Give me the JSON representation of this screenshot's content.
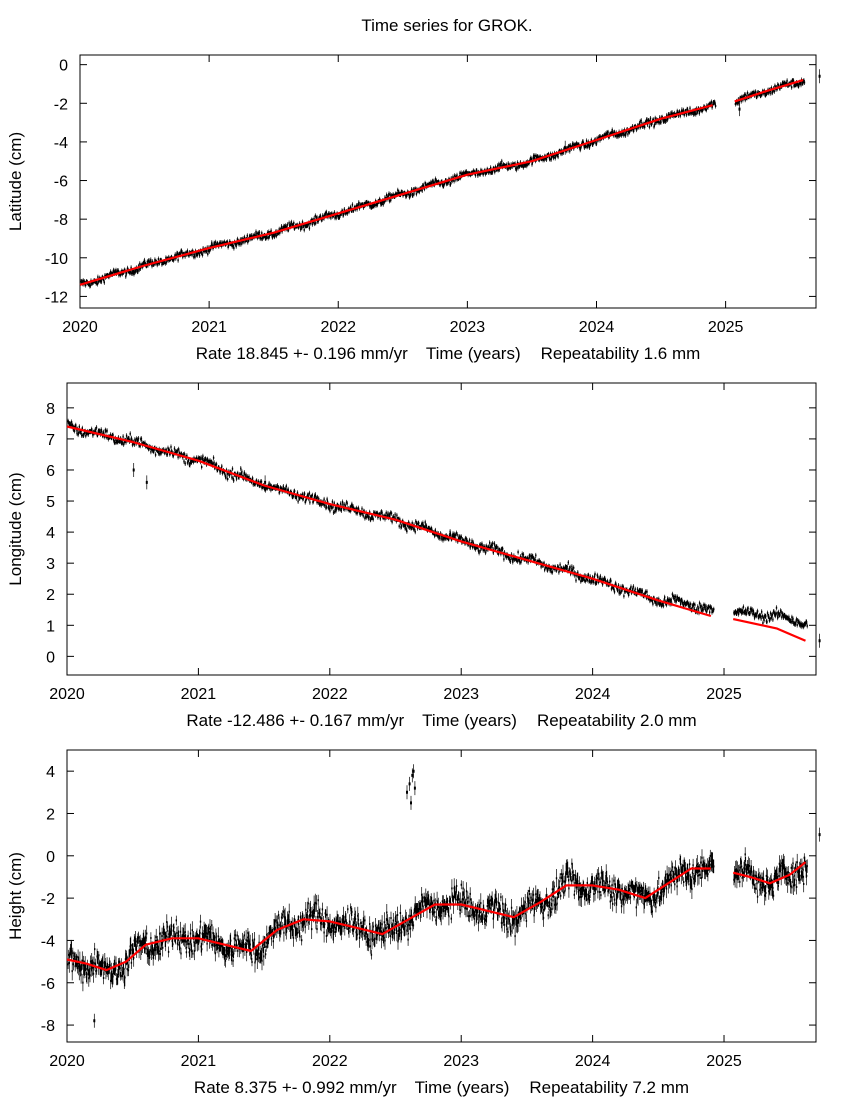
{
  "figure": {
    "title": "Time series for GROK."
  },
  "chart_data": [
    {
      "type": "scatter",
      "name": "latitude",
      "ylabel": "Latitude (cm)",
      "xlabel_rate": "Rate 18.845 +- 0.196 mm/yr",
      "xlabel_axis": "Time (years)",
      "xlabel_repeat": "Repeatability 1.6 mm",
      "xlim": [
        2020,
        2025.7
      ],
      "ylim": [
        -12.6,
        0.5
      ],
      "xticks": [
        2020,
        2021,
        2022,
        2023,
        2024,
        2025
      ],
      "xtick_labels": [
        "2020",
        "2021",
        "2022",
        "2023",
        "2024",
        "2025"
      ],
      "yticks": [
        0,
        -2,
        -4,
        -6,
        -8,
        -10,
        -12
      ],
      "ytick_labels": [
        "0",
        "-2",
        "-4",
        "-6",
        "-8",
        "-10",
        "-12"
      ],
      "fit_color": "#ff0000",
      "data_color": "#000000",
      "fit": [
        [
          2020.0,
          -11.4
        ],
        [
          2020.5,
          -10.4
        ],
        [
          2021.0,
          -9.5
        ],
        [
          2021.5,
          -8.7
        ],
        [
          2022.0,
          -7.7
        ],
        [
          2022.5,
          -6.7
        ],
        [
          2023.0,
          -5.7
        ],
        [
          2023.5,
          -5.0
        ],
        [
          2024.0,
          -3.9
        ],
        [
          2024.5,
          -2.8
        ],
        [
          2024.9,
          -2.1
        ]
      ],
      "fit2": [
        [
          2025.07,
          -1.9
        ],
        [
          2025.3,
          -1.4
        ],
        [
          2025.6,
          -0.8
        ]
      ],
      "noise": 0.18,
      "gap": [
        2024.92,
        2025.07
      ],
      "outliers": [
        [
          2025.1,
          -2.3
        ],
        [
          2025.72,
          -0.6
        ],
        [
          2023.75,
          -4.3
        ]
      ]
    },
    {
      "type": "scatter",
      "name": "longitude",
      "ylabel": "Longitude (cm)",
      "xlabel_rate": "Rate -12.486 +- 0.167 mm/yr",
      "xlabel_axis": "Time (years)",
      "xlabel_repeat": "Repeatability 2.0 mm",
      "xlim": [
        2020,
        2025.7
      ],
      "ylim": [
        -0.6,
        8.8
      ],
      "xticks": [
        2020,
        2021,
        2022,
        2023,
        2024,
        2025
      ],
      "xtick_labels": [
        "2020",
        "2021",
        "2022",
        "2023",
        "2024",
        "2025"
      ],
      "yticks": [
        0,
        1,
        2,
        3,
        4,
        5,
        6,
        7,
        8
      ],
      "ytick_labels": [
        "0",
        "1",
        "2",
        "3",
        "4",
        "5",
        "6",
        "7",
        "8"
      ],
      "fit_color": "#ff0000",
      "data_color": "#000000",
      "fit": [
        [
          2020.0,
          7.4
        ],
        [
          2020.5,
          6.9
        ],
        [
          2021.0,
          6.3
        ],
        [
          2021.5,
          5.5
        ],
        [
          2022.0,
          4.9
        ],
        [
          2022.5,
          4.4
        ],
        [
          2023.0,
          3.7
        ],
        [
          2023.5,
          3.1
        ],
        [
          2024.0,
          2.5
        ],
        [
          2024.5,
          1.8
        ],
        [
          2024.9,
          1.3
        ]
      ],
      "fit2": [
        [
          2025.07,
          1.2
        ],
        [
          2025.4,
          0.9
        ],
        [
          2025.62,
          0.5
        ]
      ],
      "data_shift": [
        [
          2024.6,
          0.15
        ],
        [
          2025.07,
          0.2
        ],
        [
          2025.62,
          0.55
        ]
      ],
      "noise": 0.15,
      "gap": [
        2024.92,
        2025.07
      ],
      "outliers": [
        [
          2020.5,
          6.0
        ],
        [
          2020.6,
          5.6
        ],
        [
          2025.72,
          0.5
        ],
        [
          2021.5,
          5.6
        ]
      ]
    },
    {
      "type": "scatter",
      "name": "height",
      "ylabel": "Height (cm)",
      "xlabel_rate": "Rate 8.375 +- 0.992 mm/yr",
      "xlabel_axis": "Time (years)",
      "xlabel_repeat": "Repeatability 7.2 mm",
      "xlim": [
        2020,
        2025.7
      ],
      "ylim": [
        -8.8,
        5.0
      ],
      "xticks": [
        2020,
        2021,
        2022,
        2023,
        2024,
        2025
      ],
      "xtick_labels": [
        "2020",
        "2021",
        "2022",
        "2023",
        "2024",
        "2025"
      ],
      "yticks": [
        4,
        2,
        0,
        -2,
        -4,
        -6,
        -8
      ],
      "ytick_labels": [
        "4",
        "2",
        "0",
        "-2",
        "-4",
        "-6",
        "-8"
      ],
      "fit_color": "#ff0000",
      "data_color": "#000000",
      "fit": [
        [
          2020.0,
          -4.9
        ],
        [
          2020.15,
          -5.1
        ],
        [
          2020.3,
          -5.4
        ],
        [
          2020.45,
          -5.0
        ],
        [
          2020.6,
          -4.2
        ],
        [
          2020.8,
          -3.9
        ],
        [
          2021.0,
          -3.9
        ],
        [
          2021.2,
          -4.2
        ],
        [
          2021.4,
          -4.5
        ],
        [
          2021.6,
          -3.5
        ],
        [
          2021.8,
          -3.0
        ],
        [
          2022.0,
          -3.1
        ],
        [
          2022.2,
          -3.4
        ],
        [
          2022.4,
          -3.7
        ],
        [
          2022.6,
          -3.0
        ],
        [
          2022.8,
          -2.3
        ],
        [
          2023.0,
          -2.3
        ],
        [
          2023.2,
          -2.6
        ],
        [
          2023.4,
          -2.9
        ],
        [
          2023.6,
          -2.2
        ],
        [
          2023.8,
          -1.4
        ],
        [
          2024.0,
          -1.4
        ],
        [
          2024.2,
          -1.6
        ],
        [
          2024.4,
          -2.0
        ],
        [
          2024.6,
          -1.2
        ],
        [
          2024.75,
          -0.6
        ],
        [
          2024.9,
          -0.6
        ]
      ],
      "fit2": [
        [
          2025.07,
          -0.8
        ],
        [
          2025.2,
          -1.0
        ],
        [
          2025.35,
          -1.3
        ],
        [
          2025.5,
          -0.9
        ],
        [
          2025.62,
          -0.3
        ]
      ],
      "noise": 0.6,
      "gap": [
        2024.92,
        2025.07
      ],
      "outliers": [
        [
          2022.58,
          3.0
        ],
        [
          2022.6,
          3.4
        ],
        [
          2022.62,
          3.8
        ],
        [
          2022.64,
          3.2
        ],
        [
          2022.61,
          2.5
        ],
        [
          2022.63,
          4.0
        ],
        [
          2025.72,
          1.0
        ],
        [
          2020.2,
          -7.8
        ]
      ]
    }
  ]
}
